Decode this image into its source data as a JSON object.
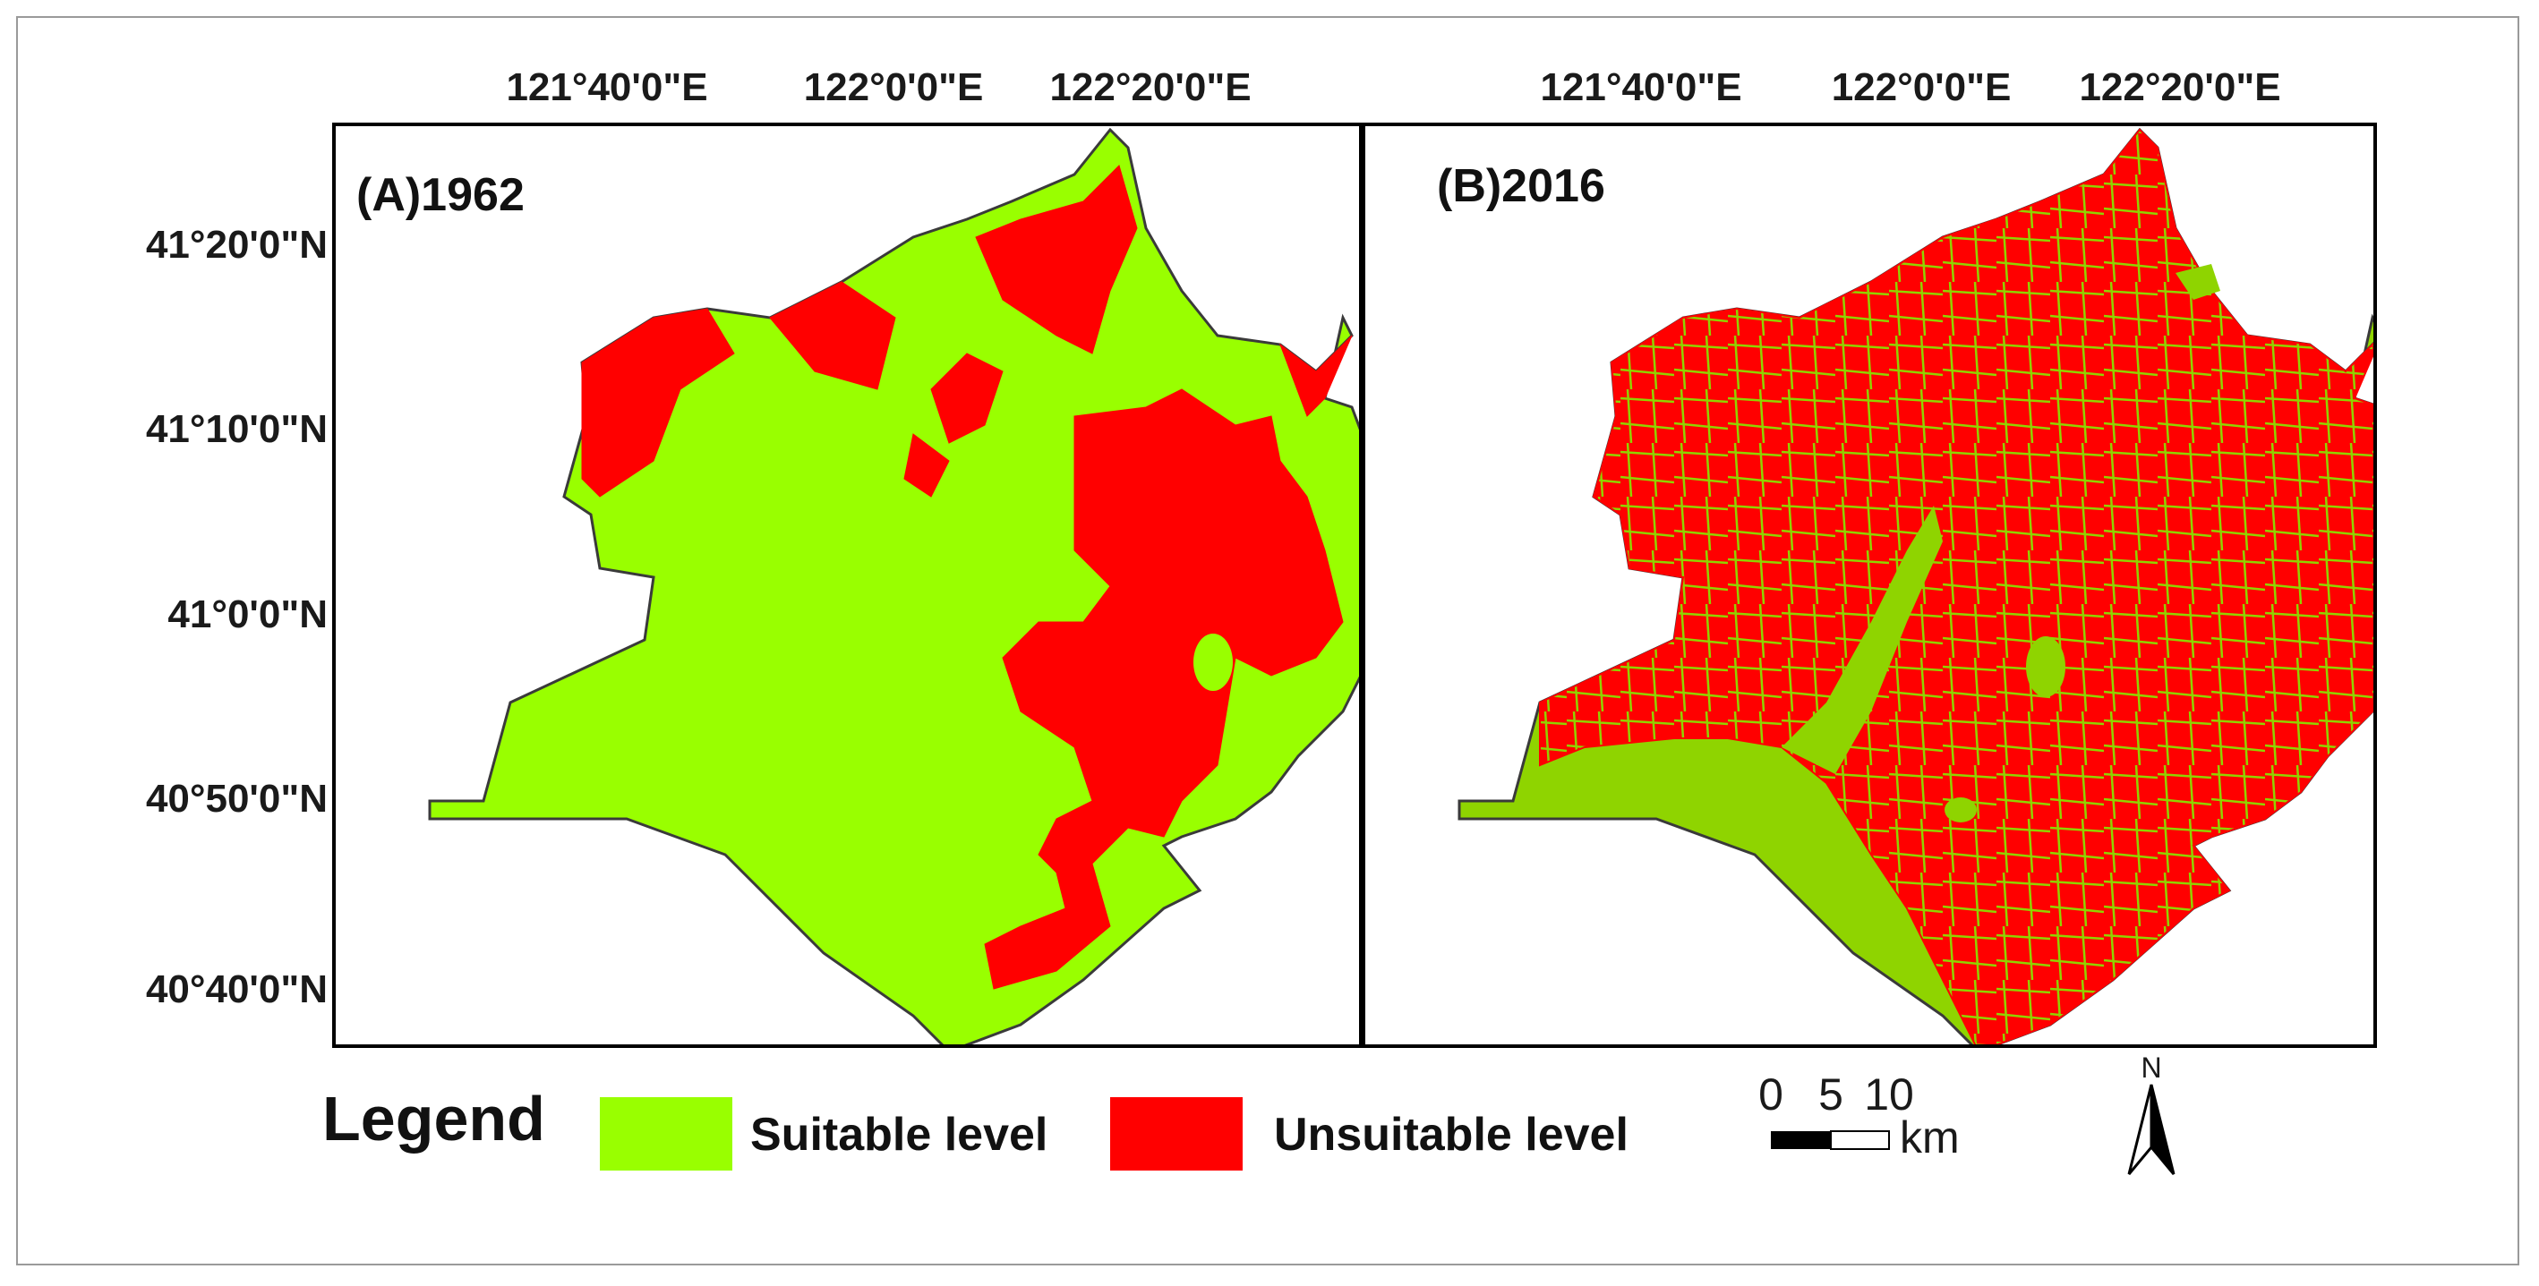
{
  "panels": [
    {
      "label": "(A)1962"
    },
    {
      "label": "(B)2016"
    }
  ],
  "top_ticks": [
    "121°40'0\"E",
    "122°0'0\"E",
    "122°20'0\"E"
  ],
  "left_ticks": [
    "41°20'0\"N",
    "41°10'0\"N",
    "41°0'0\"N",
    "40°50'0\"N",
    "40°40'0\"N"
  ],
  "legend": {
    "title": "Legend",
    "items": [
      {
        "label": "Suitable level",
        "color": "#99ff00"
      },
      {
        "label": "Unsuitable level",
        "color": "#ff0000"
      }
    ]
  },
  "scale_bar": {
    "ticks": [
      "0",
      "5",
      "10"
    ],
    "unit": "km"
  },
  "north_arrow": {
    "label": "N"
  }
}
